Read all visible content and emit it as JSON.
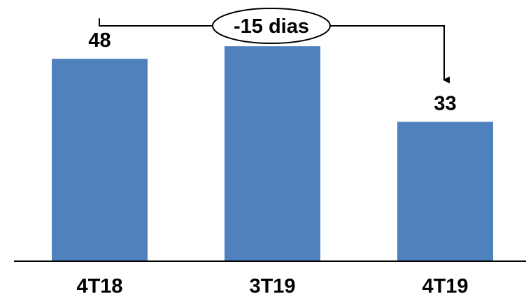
{
  "chart_data": {
    "type": "bar",
    "title": "",
    "xlabel": "",
    "ylabel": "",
    "categories": [
      "4T18",
      "3T19",
      "4T19"
    ],
    "values": [
      48,
      51,
      33
    ],
    "ylim": [
      0,
      62
    ],
    "grid": false,
    "bar_color": "#4F81BD",
    "annotation": {
      "label": "-15 dias",
      "from_category": "4T18",
      "to_category": "4T19"
    }
  }
}
